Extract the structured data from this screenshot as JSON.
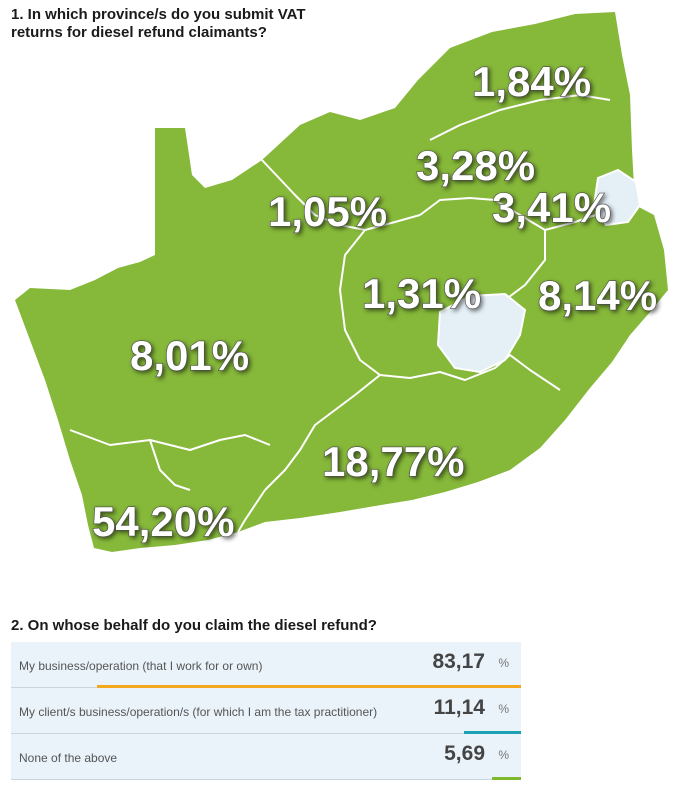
{
  "q1": {
    "title": "1. In which province/s do you submit VAT returns for diesel refund claimants?"
  },
  "q2": {
    "title": "2. On whose behalf do you claim the diesel refund?"
  },
  "colors": {
    "land": "#86b83a",
    "border": "#ffffff",
    "lesotho": "#e4eff6"
  },
  "chart_data": [
    {
      "type": "map",
      "regions": [
        {
          "name": "Limpopo",
          "label": "1,84%",
          "value": 1.84
        },
        {
          "name": "Gauteng",
          "label": "3,28%",
          "value": 3.28
        },
        {
          "name": "Mpumalanga",
          "label": "3,41%",
          "value": 3.41
        },
        {
          "name": "North West",
          "label": "1,05%",
          "value": 1.05
        },
        {
          "name": "Free State",
          "label": "1,31%",
          "value": 1.31
        },
        {
          "name": "KwaZulu-Natal",
          "label": "8,14%",
          "value": 8.14
        },
        {
          "name": "Northern Cape",
          "label": "8,01%",
          "value": 8.01
        },
        {
          "name": "Eastern Cape",
          "label": "18,77%",
          "value": 18.77
        },
        {
          "name": "Western Cape",
          "label": "54,20%",
          "value": 54.2
        }
      ]
    },
    {
      "type": "bar",
      "unit": "%",
      "categories": [
        "My business/operation (that I work for or own)",
        "My client/s business/operation/s (for which I am the tax practitioner)",
        "None of the above"
      ],
      "labels": [
        "83,17",
        "11,14",
        "5,69"
      ],
      "values": [
        83.17,
        11.14,
        5.69
      ],
      "colors": [
        "#f3a81f",
        "#1aa1b3",
        "#7fb82e"
      ]
    }
  ]
}
